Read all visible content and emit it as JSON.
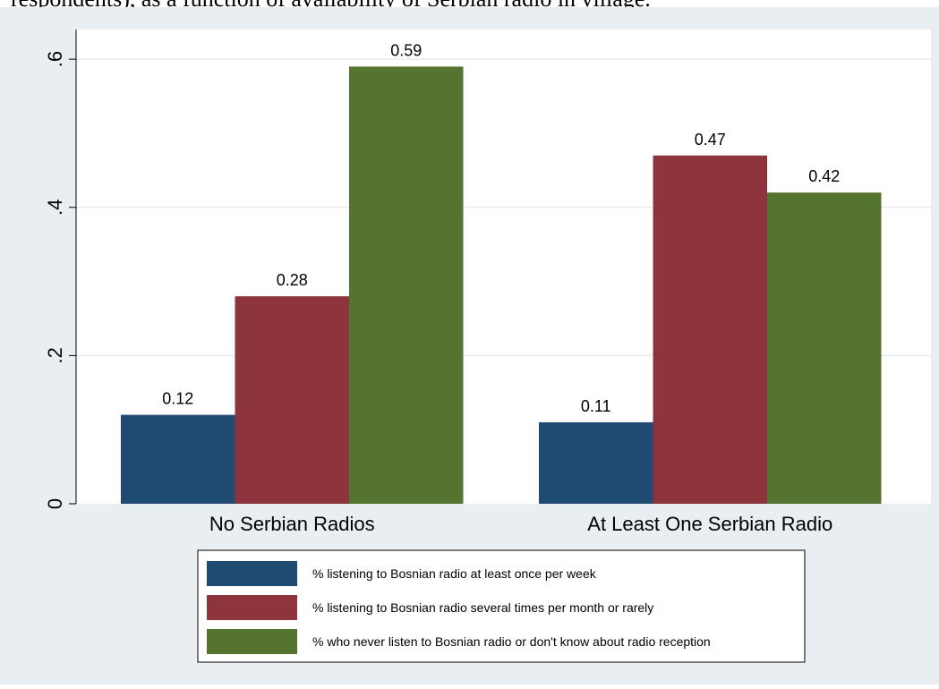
{
  "caption_fragment": "respondents), as a function of availability of Serbian radio in village.",
  "colors": {
    "outer_background": "#e8eef2",
    "plot_background": "#ffffff",
    "series": [
      "#1f4a72",
      "#8e343c",
      "#55742f"
    ]
  },
  "chart_data": {
    "type": "bar",
    "categories": [
      "No Serbian Radios",
      "At Least One Serbian Radio"
    ],
    "series": [
      {
        "name": "% listening to Bosnian radio at least once per week",
        "values": [
          0.12,
          0.11
        ],
        "labels": [
          "0.12",
          "0.11"
        ]
      },
      {
        "name": "% listening to Bosnian radio several times per month or rarely",
        "values": [
          0.28,
          0.47
        ],
        "labels": [
          "0.28",
          "0.47"
        ]
      },
      {
        "name": "%  who never listen to Bosnian radio or don't know about radio reception",
        "values": [
          0.59,
          0.42
        ],
        "labels": [
          "0.59",
          "0.42"
        ]
      }
    ],
    "ylim": [
      0,
      0.64
    ],
    "yticks": [
      0,
      0.2,
      0.4,
      0.6
    ],
    "ytick_labels": [
      "0",
      ".2",
      ".4",
      ".6"
    ],
    "grid": true,
    "legend_position": "bottom",
    "title": "",
    "xlabel": "",
    "ylabel": ""
  }
}
